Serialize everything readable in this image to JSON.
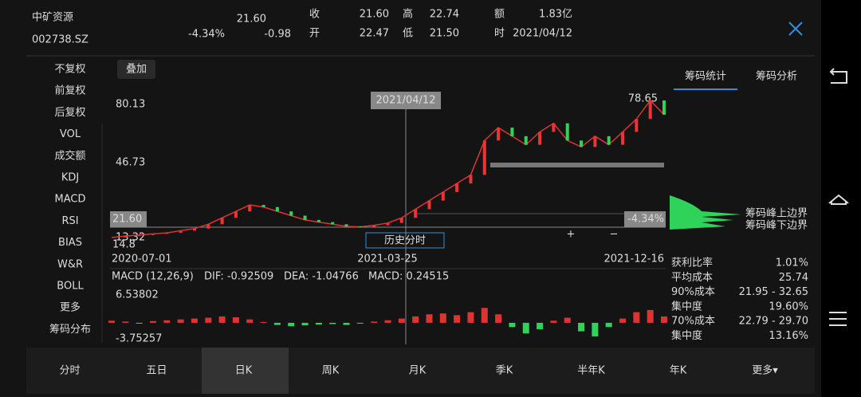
{
  "header": {
    "name": "中矿资源",
    "code": "002738.SZ",
    "price": "21.60",
    "change_pct": "-4.34%",
    "change": "-0.98",
    "fields": [
      {
        "label": "收",
        "value": "21.60"
      },
      {
        "label": "高",
        "value": "22.74"
      },
      {
        "label": "额",
        "value": "1.83亿"
      },
      {
        "label": "开",
        "value": "22.47"
      },
      {
        "label": "低",
        "value": "21.50"
      },
      {
        "label": "时",
        "value": "2021/04/12"
      }
    ]
  },
  "menu": {
    "items": [
      "不复权",
      "前复权",
      "后复权",
      "VOL",
      "成交额",
      "KDJ",
      "MACD",
      "RSI",
      "BIAS",
      "W&R",
      "BOLL",
      "更多",
      "筹码分布"
    ]
  },
  "chart": {
    "overlay_button": "叠加",
    "crosshair_date": "2021/04/12",
    "price_max": 80.13,
    "price_mid": "46.73",
    "price_min": 14.8,
    "low_label": "13.32",
    "last_price": "21.60",
    "last_change": "-4.34%",
    "peak_price": "78.65",
    "dates": [
      "2020-07-01",
      "2021-03-25",
      "2021-12-16"
    ],
    "history_button": "历史分时",
    "closes": [
      14.8,
      15.5,
      16,
      16.5,
      17,
      18,
      19,
      21,
      24,
      27,
      30,
      29,
      27,
      25,
      23,
      22,
      21,
      20,
      19.8,
      20.5,
      21.6,
      24,
      28,
      32,
      36,
      40,
      44,
      60,
      66,
      62,
      58,
      64,
      68,
      60,
      57,
      62,
      58,
      64,
      70,
      78.65,
      72
    ],
    "macd": {
      "title": "MACD (12,26,9)",
      "dif": "DIF: -0.92509",
      "dea": "DEA: -1.04766",
      "value": "MACD: 0.24515",
      "max": 6.53802,
      "min": -3.75257,
      "hist": [
        0.5,
        0.3,
        -0.2,
        0.4,
        0.6,
        0.8,
        1,
        1.2,
        1.5,
        1.3,
        0.8,
        0.2,
        -0.5,
        -0.8,
        -0.6,
        -0.4,
        -0.3,
        -0.5,
        -0.2,
        0.3,
        0.6,
        1,
        1.5,
        2,
        2.2,
        1.8,
        2.5,
        3.5,
        2,
        -1,
        -2.5,
        -1.5,
        0.5,
        1.2,
        -2,
        -3.2,
        -1,
        1,
        2.5,
        3,
        1.5
      ]
    }
  },
  "chip_panel": {
    "tabs": [
      "筹码统计",
      "筹码分析"
    ],
    "labels": [
      "筹码峰上边界",
      "筹码峰下边界"
    ],
    "stats": [
      {
        "label": "获利比率",
        "value": "1.01%"
      },
      {
        "label": "平均成本",
        "value": "25.74"
      },
      {
        "label": "90%成本",
        "value": "21.95 - 32.65"
      },
      {
        "label": "集中度",
        "value": "19.60%"
      },
      {
        "label": "70%成本",
        "value": "22.79 - 29.70"
      },
      {
        "label": "集中度",
        "value": "13.16%"
      }
    ]
  },
  "tabs": [
    "分时",
    "五日",
    "日K",
    "周K",
    "月K",
    "季K",
    "半年K",
    "年K",
    "更多▾"
  ]
}
